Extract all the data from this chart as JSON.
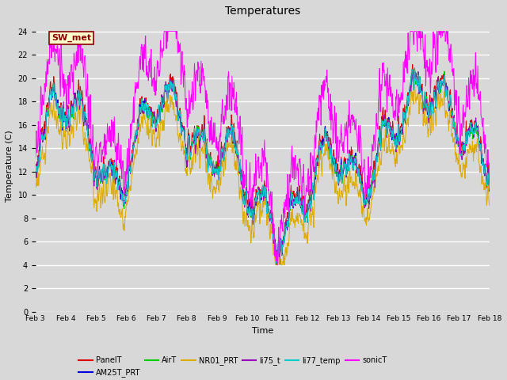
{
  "title": "Temperatures",
  "xlabel": "Time",
  "ylabel": "Temperature (C)",
  "ylim": [
    0,
    25
  ],
  "yticks": [
    0,
    2,
    4,
    6,
    8,
    10,
    12,
    14,
    16,
    18,
    20,
    22,
    24
  ],
  "date_labels": [
    "Feb 3",
    "Feb 4",
    "Feb 5",
    "Feb 6",
    "Feb 7",
    "Feb 8",
    "Feb 9",
    "Feb 10",
    "Feb 11",
    "Feb 12",
    "Feb 13",
    "Feb 14",
    "Feb 15",
    "Feb 16",
    "Feb 17",
    "Feb 18"
  ],
  "series_names": [
    "PanelT",
    "AM25T_PRT",
    "AirT",
    "NR01_PRT",
    "li75_t",
    "li77_temp",
    "sonicT"
  ],
  "series_colors": [
    "#dd0000",
    "#0000dd",
    "#00cc00",
    "#ddaa00",
    "#9900bb",
    "#00cccc",
    "#ff00ff"
  ],
  "annotation_text": "SW_met",
  "background_color": "#d8d8d8",
  "grid_color": "white",
  "n_points": 1440,
  "figsize": [
    6.4,
    4.8
  ],
  "dpi": 100
}
